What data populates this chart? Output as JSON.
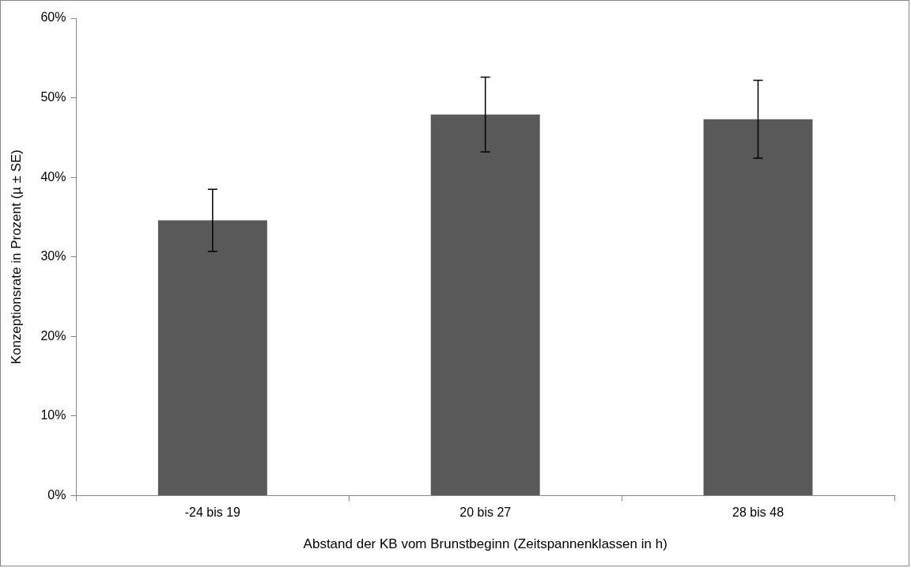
{
  "chart_data": {
    "type": "bar",
    "xlabel": "Abstand der KB vom Brunstbeginn (Zeitspannenklassen in h)",
    "ylabel": "Konzeptionsrate in Prozent (µ ± SE)",
    "categories": [
      "-24 bis 19",
      "20 bis 27",
      "28 bis 48"
    ],
    "values": [
      34.6,
      47.9,
      47.3
    ],
    "errors": [
      3.9,
      4.7,
      4.9
    ],
    "color": "#595959",
    "ylim": [
      0,
      60
    ],
    "yticks": [
      {
        "value": 0,
        "label": "0%"
      },
      {
        "value": 10,
        "label": "10%"
      },
      {
        "value": 20,
        "label": "20%"
      },
      {
        "value": 30,
        "label": "30%"
      },
      {
        "value": 40,
        "label": "40%"
      },
      {
        "value": 50,
        "label": "50%"
      },
      {
        "value": 60,
        "label": "60%"
      }
    ]
  }
}
